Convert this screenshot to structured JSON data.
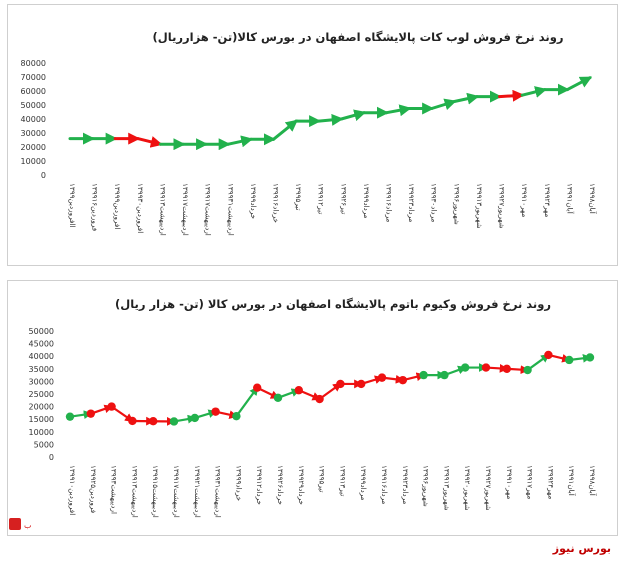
{
  "chart_data": [
    {
      "type": "line",
      "title": "روند نرخ فروش لوب کات پالایشگاه اصفهان در بورس کالا(تن- هزارریال)",
      "xlabel": "",
      "ylabel": "",
      "ylim": [
        0,
        80000
      ],
      "yticks": [
        0,
        10000,
        20000,
        30000,
        40000,
        50000,
        60000,
        70000,
        80000
      ],
      "categories": [
        "۱۳۹۹اافروردین",
        "۱۳۹۹فروردین۱۶",
        "۱۳۹۹افروردین۹",
        "۱۳۹۹افروردین۳۰",
        "۱۳۹۹اردیبهشت۱۳",
        "۱۳۹۹اردیبهشت۱۷",
        "۱۳۹۹اردیبهشت۱۷",
        "۱۳۹۹اردیبهشت۳۱",
        "۱۳۹۹خرداد۹",
        "۱۳۹۹خرداد۱۶",
        "۱۳۹۹تیر۵",
        "۱۳۹۹تیر۱۲",
        "۱۳۹۹تیر۲۶",
        "۱۳۹۹مرداد۹",
        "۱۳۹۹مرداد۱۶",
        "۱۳۹۹مرداد۲۳",
        "۱۳۹۹مرداد۳۰",
        "۱۳۹۹شهریور۶",
        "۱۳۹۹شهریور۱۳",
        "۱۳۹۹شهریور۲۷",
        "۱۳۹۹مهر۱۰",
        "۱۳۹۹مهر۲۴",
        "۱۳۹۹آبان۱",
        "۱۳۹۹آبان۸"
      ],
      "values": [
        26000,
        26000,
        26000,
        26000,
        22000,
        22000,
        22000,
        22000,
        25500,
        25500,
        38500,
        38500,
        40000,
        44500,
        44500,
        47500,
        47500,
        52500,
        56000,
        56000,
        57000,
        61000,
        61000,
        69500
      ],
      "colors": [
        "green",
        "green",
        "red",
        "red",
        "green",
        "green",
        "green",
        "green",
        "green",
        "green",
        "green",
        "green",
        "green",
        "green",
        "green",
        "green",
        "green",
        "green",
        "green",
        "red",
        "green",
        "green",
        "green",
        "green"
      ],
      "grid": false,
      "legend": "none"
    },
    {
      "type": "line",
      "title": "روند نرخ فروش وکیوم باتوم پالایشگاه اصفهان در بورس کالا (تن- هزار ریال)",
      "xlabel": "",
      "ylabel": "",
      "ylim": [
        0,
        50000
      ],
      "yticks": [
        0,
        5000,
        10000,
        15000,
        20000,
        25000,
        30000,
        35000,
        40000,
        45000,
        50000
      ],
      "categories": [
        "۱۳۹۹افروردین۱۰",
        "۱۳۹۹فروردین۲۵",
        "۱۳۹۹اردیبهشت۳",
        "۱۳۹۹اردیبهشت۱۳",
        "۱۳۹۹اردیبهشت۱۵",
        "۱۳۹۹اردیبهشت۱۷",
        "۱۳۹۹اردیبهشت۲۱",
        "۱۳۹۹اردیبهشت۳۱",
        "۱۳۹۹خرداد۹",
        "۱۳۹۹خرداد۱۲",
        "۱۳۹۹خرداد۲۶",
        "۱۳۹۹خرداد۲۹",
        "۱۳۹۹تیر۵",
        "۱۳۹۹تیر۱۳",
        "۱۳۹۹مرداد۹",
        "۱۳۹۹مرداد۱۶",
        "۱۳۹۹مرداد۲۳",
        "۱۳۹۹شهریور۶",
        "۱۳۹۹شهریور۱۳",
        "۱۳۹۹شهریور۲۰",
        "۱۳۹۹شهریور۲۷",
        "۱۳۹۹مهر۱۰",
        "۱۳۹۹مهر۱۷",
        "۱۳۹۹مهر۲۴",
        "۱۳۹۹آبان۱",
        "۱۳۹۹آبان۸"
      ],
      "values": [
        16000,
        17200,
        20000,
        14300,
        14200,
        14100,
        15500,
        18000,
        16200,
        27500,
        23500,
        26500,
        23000,
        29000,
        29000,
        31500,
        30500,
        32500,
        32500,
        35500,
        35500,
        35000,
        34500,
        40500,
        38500,
        39500
      ],
      "colors": [
        "green",
        "red",
        "red",
        "red",
        "red",
        "green",
        "green",
        "red",
        "green",
        "red",
        "green",
        "red",
        "red",
        "red",
        "red",
        "red",
        "red",
        "green",
        "green",
        "green",
        "red",
        "red",
        "green",
        "red",
        "green",
        "green"
      ],
      "grid": false,
      "legend": "none"
    }
  ],
  "footer": "بورس نیوز",
  "colors": {
    "up": "#22b14c",
    "down": "#ee1111",
    "footer": "#c00000"
  },
  "icons": {
    "logo": "bourse-news-logo-icon"
  }
}
